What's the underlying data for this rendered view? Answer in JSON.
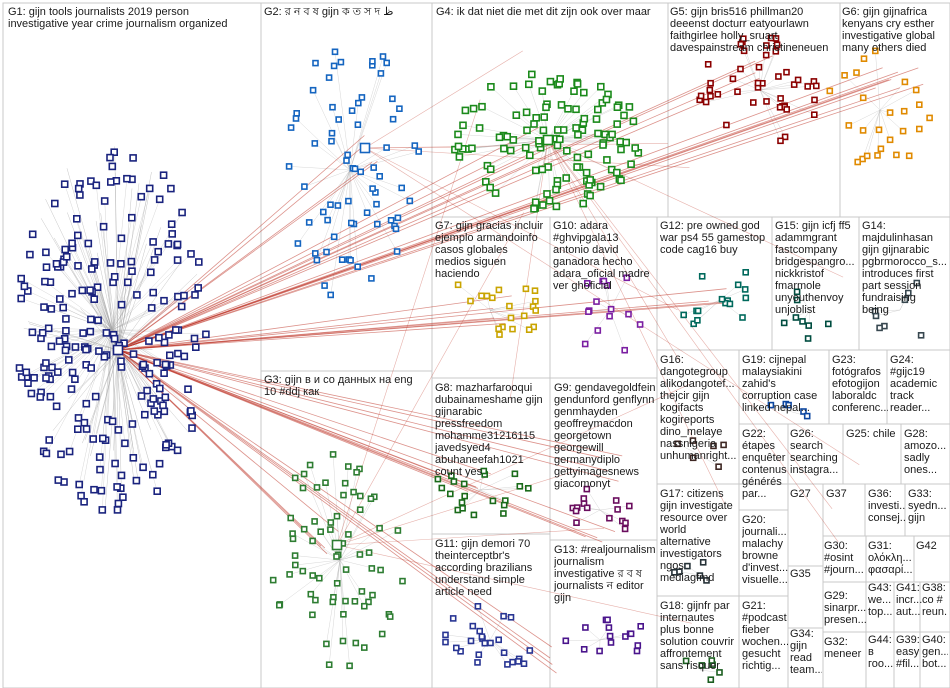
{
  "groups": [
    {
      "id": "g1",
      "label": "G1: gijn tools journalists 2019 person\ninvestigative year crime journalism organized",
      "color": "#1a237e"
    },
    {
      "id": "g2",
      "label": "G2: র ন ব ষ gijn ক ত স দ ظ",
      "color": "#1565c0"
    },
    {
      "id": "g3",
      "label": "G3: gijn в и со данных на eng\n10 #ddj как",
      "color": "#2e7d32"
    },
    {
      "id": "g4",
      "label": "G4: ik dat niet die met dit zijn ook over maar",
      "color": "#1b8a1b"
    },
    {
      "id": "g5",
      "label": "G5: gijn bris516 phillman20\ndeeenst docturr eatyourlawn\nfaithgirlee holly_sruart\ndavespainstream christineneuen",
      "color": "#8b0000"
    },
    {
      "id": "g6",
      "label": "G6: gijn gijnafrica\nkenyans cry esther\ninvestigative global\nmany others died",
      "color": "#e08a00"
    },
    {
      "id": "g7",
      "label": "G7: gijn gracias incluir\nejemplo armandoinfo\ncasos globales\nmedios siguen\nhaciendo",
      "color": "#c9a400"
    },
    {
      "id": "g8",
      "label": "G8: mazharfarooqui\ndubainameshame gijn\ngijnarabic\npressfreedom\nmohamme31216115\njavedsyed4\nabuhaneefah1021\ncount yes",
      "color": "#1a6b1a"
    },
    {
      "id": "g9",
      "label": "G9: gendavegoldfein\ngendunford genflynn\ngenmhayden\ngeoffreymacdon\ngeorgetown\ngeorgewill\ngermanydiplo\ngettyimagesnews\ngiacomonyt",
      "color": "#6a0d5e"
    },
    {
      "id": "g10",
      "label": "G10: adara\n#ghvipgala13\nantonio david\nganadora hecho\nadara_oficial madre\nver ghoficial",
      "color": "#7b1fa2"
    },
    {
      "id": "g11",
      "label": "G11: gijn demori 70\ntheinterceptbr's\naccording brazilians\nunderstand simple\narticle need",
      "color": "#283593"
    },
    {
      "id": "g12",
      "label": "G12: pre owned god\nwar ps4 55 gamestop\ncode cag16 buy",
      "color": "#00695c"
    },
    {
      "id": "g13",
      "label": "G13: #realjournalism\njournalism\ninvestigative র ব ষ\njournalists ন editor\ngijn",
      "color": "#4a148c"
    },
    {
      "id": "g14",
      "label": "G14:\nmajdulinhasan\ngijn gijnarabic\npgbrmorocco_s...\nintroduces first\npart session\nfundraising\nbeing",
      "color": "#37474f"
    },
    {
      "id": "g15",
      "label": "G15: gijn icfj ff5\nadammgrant\nfastcompany\nbridgespangro...\nnickkristof\nfmarmole\nunyouthenvoy\nunjoblist",
      "color": "#004d40"
    },
    {
      "id": "g16",
      "label": "G16:\ndangotegroup\nalikodangotef...\nthejcir gijn\nkogifacts\nkogireports\ndino_melaye\nnassnigeria\nunhumanright...",
      "color": "#3e2723"
    },
    {
      "id": "g17",
      "label": "G17: citizens\ngijn investigate\nresource over\nworld\nalternative\ninvestigators\nngos\nmediagfmd",
      "color": "#263238"
    },
    {
      "id": "g18",
      "label": "G18: gijnfr par\ninternautes\nplus bonne\nsolution couvrir\naffrontement\nsans risquer",
      "color": "#1b5e20"
    },
    {
      "id": "g19",
      "label": "G19: cijnepal\nmalaysiakini\nzahid's\ncorruption case\nlinked nepal...",
      "color": "#0d47a1"
    },
    {
      "id": "g20",
      "label": "G20:\njournali...\nmalachy\nbrowne\nd'invest...\nvisuelle...",
      "color": "#311b92"
    },
    {
      "id": "g21",
      "label": "G21:\n#podcast\nfieber\nwochen...\ngesucht\nrichtig...",
      "color": "#33691e"
    },
    {
      "id": "g22",
      "label": "G22:\nétapes\nenquêter\ncontenus\ngénérés\npar...",
      "color": "#4e342e"
    },
    {
      "id": "g23",
      "label": "G23:\nfotógrafos\nefotogijon\nlaboraldc\nconferenc...",
      "color": "#5d4037"
    },
    {
      "id": "g24",
      "label": "G24:\n#gijc19\nacademic\ntrack\nreader...",
      "color": "#455a64"
    },
    {
      "id": "g25",
      "label": "G25: chile",
      "color": "#006064"
    },
    {
      "id": "g26",
      "label": "G26:\nsearch\nsearching\ninstagra...",
      "color": "#01579b"
    },
    {
      "id": "g27",
      "label": "G27",
      "color": "#1a237e"
    },
    {
      "id": "g28",
      "label": "G28:\namozo...\nsadly\nones...",
      "color": "#4a148c"
    },
    {
      "id": "g29",
      "label": "G29:\nsinarpr...\npresen...",
      "color": "#1b5e20"
    },
    {
      "id": "g30",
      "label": "G30:\n#osint\n#journ...",
      "color": "#0d47a1"
    },
    {
      "id": "g31",
      "label": "G31:\nολόκλη...\nφασαρί...",
      "color": "#311b92"
    },
    {
      "id": "g32",
      "label": "G32:\nmeneer",
      "color": "#3e2723"
    },
    {
      "id": "g33",
      "label": "G33:\nsyedn...\ngijn",
      "color": "#263238"
    },
    {
      "id": "g34",
      "label": "G34:\ngijn\nread\nteam...",
      "color": "#004d40"
    },
    {
      "id": "g35",
      "label": "G35",
      "color": "#1a237e"
    },
    {
      "id": "g36",
      "label": "G36:\ninvesti...\nconsej...",
      "color": "#0d47a1"
    },
    {
      "id": "g37",
      "label": "G37",
      "color": "#1a237e"
    },
    {
      "id": "g38",
      "label": "G38:\nco #\nreun...",
      "color": "#b71c1c"
    },
    {
      "id": "g39",
      "label": "G39:\neasy\n#fil...",
      "color": "#37474f"
    },
    {
      "id": "g40",
      "label": "G40:\ngen...\nbot...",
      "color": "#33691e"
    },
    {
      "id": "g41",
      "label": "G41:\nincr...\naut...",
      "color": "#1a237e"
    },
    {
      "id": "g42",
      "label": "G42",
      "color": "#1a237e"
    },
    {
      "id": "g43",
      "label": "G43:\nwe...\ntop...",
      "color": "#01579b"
    },
    {
      "id": "g44",
      "label": "G44:\nв\nгоо...",
      "color": "#1a237e"
    }
  ],
  "colors": {
    "edge": "#9e9e9e",
    "hub_edge": "#c0392b",
    "border": "#c8c8c8"
  }
}
